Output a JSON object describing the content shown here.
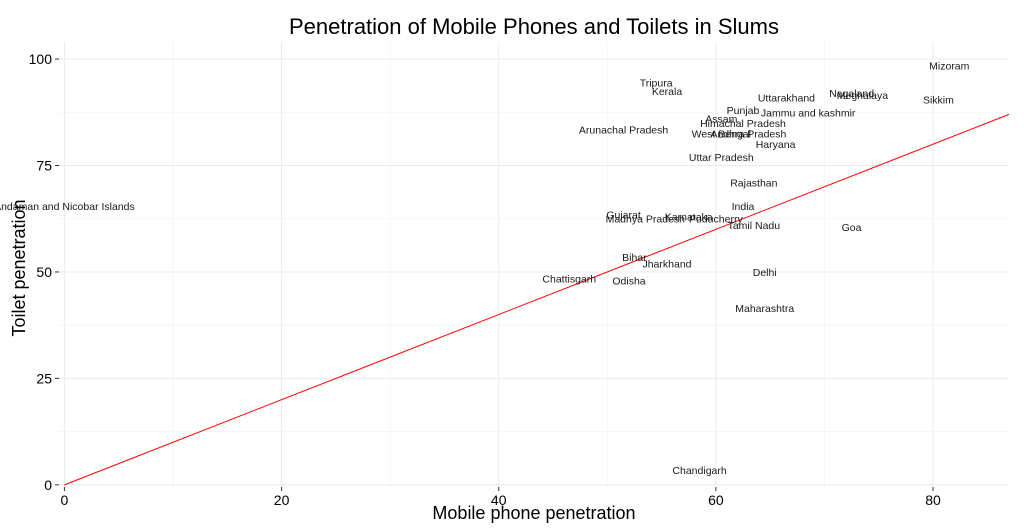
{
  "chart_data": {
    "type": "scatter",
    "title": "Penetration of Mobile Phones and Toilets in Slums",
    "xlabel": "Mobile phone penetration",
    "ylabel": "Toilet penetration",
    "xlim": [
      -0.5,
      87
    ],
    "ylim": [
      -0.5,
      104
    ],
    "xticks": [
      0,
      20,
      40,
      60,
      80
    ],
    "yticks": [
      0,
      25,
      50,
      75,
      100
    ],
    "grid": true,
    "reference_line": {
      "x": [
        0,
        87
      ],
      "y": [
        0,
        87
      ],
      "color": "#ff0000"
    },
    "points": [
      {
        "label": "Mizoram",
        "x": 81.5,
        "y": 98.5
      },
      {
        "label": "Tripura",
        "x": 54.5,
        "y": 94.5
      },
      {
        "label": "Nagaland",
        "x": 72.5,
        "y": 92.0
      },
      {
        "label": "Meghalaya",
        "x": 73.5,
        "y": 91.5
      },
      {
        "label": "Kerala",
        "x": 55.5,
        "y": 92.5
      },
      {
        "label": "Uttarakhand",
        "x": 66.5,
        "y": 91.0
      },
      {
        "label": "Sikkim",
        "x": 80.5,
        "y": 90.5
      },
      {
        "label": "Punjab",
        "x": 62.5,
        "y": 88.0
      },
      {
        "label": "Jammu and kashmir",
        "x": 68.5,
        "y": 87.5
      },
      {
        "label": "Assam",
        "x": 60.5,
        "y": 86.0
      },
      {
        "label": "Himachal Pradesh",
        "x": 62.5,
        "y": 85.0
      },
      {
        "label": "Arunachal Pradesh",
        "x": 51.5,
        "y": 83.5
      },
      {
        "label": "West Bengal",
        "x": 60.5,
        "y": 82.5
      },
      {
        "label": "Andhra Pradesh",
        "x": 63.0,
        "y": 82.5
      },
      {
        "label": "Haryana",
        "x": 65.5,
        "y": 80.0
      },
      {
        "label": "Uttar Pradesh",
        "x": 60.5,
        "y": 77.0
      },
      {
        "label": "Rajasthan",
        "x": 63.5,
        "y": 71.0
      },
      {
        "label": "Andaman and Nicobar Islands",
        "x": 0.0,
        "y": 65.5
      },
      {
        "label": "India",
        "x": 62.5,
        "y": 65.5
      },
      {
        "label": "Gujarat",
        "x": 51.5,
        "y": 63.5
      },
      {
        "label": "Karnataka",
        "x": 57.5,
        "y": 63.0
      },
      {
        "label": "Madhya Pradesh",
        "x": 53.5,
        "y": 62.5
      },
      {
        "label": "Puducherry",
        "x": 60.0,
        "y": 62.5
      },
      {
        "label": "Tamil Nadu",
        "x": 63.5,
        "y": 61.0
      },
      {
        "label": "Goa",
        "x": 72.5,
        "y": 60.5
      },
      {
        "label": "Bihar",
        "x": 52.5,
        "y": 53.5
      },
      {
        "label": "Jharkhand",
        "x": 55.5,
        "y": 52.0
      },
      {
        "label": "Delhi",
        "x": 64.5,
        "y": 50.0
      },
      {
        "label": "Chattisgarh",
        "x": 46.5,
        "y": 48.5
      },
      {
        "label": "Odisha",
        "x": 52.0,
        "y": 48.0
      },
      {
        "label": "Maharashtra",
        "x": 64.5,
        "y": 41.5
      },
      {
        "label": "Chandigarh",
        "x": 58.5,
        "y": 3.5
      }
    ]
  }
}
